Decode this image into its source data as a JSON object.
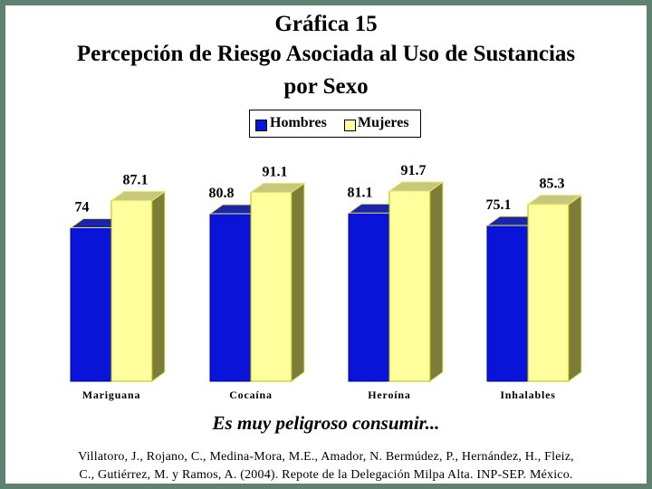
{
  "chart_data": {
    "type": "bar",
    "title": "Gráfica 15",
    "subtitle": "Percepción de Riesgo Asociada al Uso de Sustancias por Sexo",
    "categories": [
      "Mariguana",
      "Cocaína",
      "Heroína",
      "Inhalables"
    ],
    "series": [
      {
        "name": "Hombres",
        "values": [
          74,
          80.8,
          81.1,
          75.1
        ],
        "color": "#0a14d9"
      },
      {
        "name": "Mujeres",
        "values": [
          87.1,
          91.1,
          91.7,
          85.3
        ],
        "color": "#ffff9e"
      }
    ],
    "value_labels": [
      [
        "74",
        "80.8",
        "81.1",
        "75.1"
      ],
      [
        "87.1",
        "91.1",
        "91.7",
        "85.3"
      ]
    ],
    "ylim": [
      0,
      100
    ],
    "grid": false,
    "legend_position": "top-center",
    "style": "3d-column"
  },
  "text": {
    "title_line1": "Gráfica 15",
    "title_line2": "Percepción de Riesgo Asociada al Uso de Sustancias",
    "title_line3": "por Sexo",
    "legend_hombres": "Hombres",
    "legend_mujeres": "Mujeres",
    "caption": "Es muy peligroso consumir...",
    "source_line1": "Villatoro, J., Rojano, C., Medina-Mora, M.E., Amador, N. Bermúdez, P., Hernández, H., Fleiz,",
    "source_line2": "C., Gutiérrez, M. y Ramos, A. (2004). Repote de la Delegación Milpa Alta. INP-SEP. México."
  },
  "colors": {
    "frame": "#5f8270",
    "hombres": "#0a14d9",
    "mujeres": "#ffff9e"
  }
}
